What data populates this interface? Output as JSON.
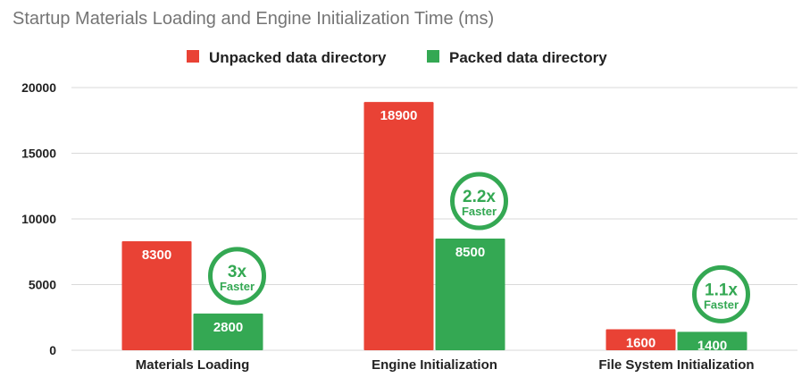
{
  "chart_data": {
    "type": "bar",
    "title": "Startup Materials Loading and Engine Initialization Time (ms)",
    "categories": [
      "Materials Loading",
      "Engine Initialization",
      "File System Initialization"
    ],
    "series": [
      {
        "name": "Unpacked data directory",
        "color": "#e94235",
        "values": [
          8300,
          18900,
          1600
        ]
      },
      {
        "name": "Packed data directory",
        "color": "#34a853",
        "values": [
          2800,
          8500,
          1400
        ]
      }
    ],
    "ylim": [
      0,
      20000
    ],
    "yticks": [
      0,
      5000,
      10000,
      15000,
      20000
    ],
    "grid": true,
    "legend_position": "top-center",
    "annotations": [
      {
        "category": "Materials Loading",
        "main": "3x",
        "sub": "Faster",
        "color": "#34a853"
      },
      {
        "category": "Engine Initialization",
        "main": "2.2x",
        "sub": "Faster",
        "color": "#34a853"
      },
      {
        "category": "File System Initialization",
        "main": "1.1x",
        "sub": "Faster",
        "color": "#34a853"
      }
    ]
  }
}
